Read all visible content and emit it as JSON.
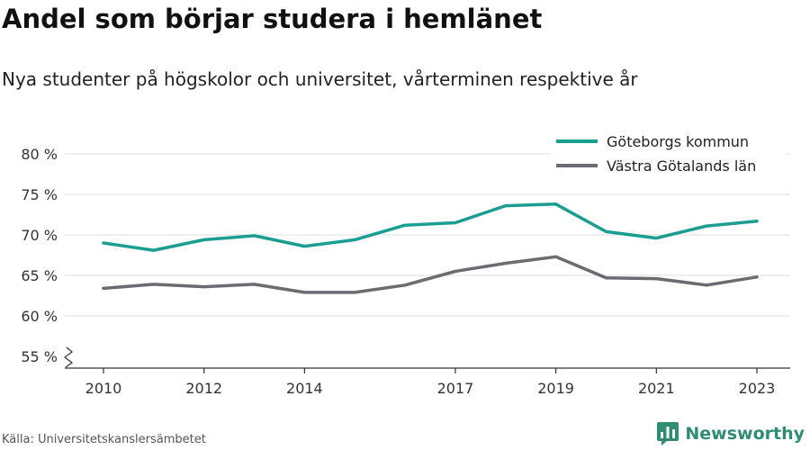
{
  "header": {
    "title": "Andel som börjar studera i hemlänet",
    "subtitle": "Nya studenter på högskolor och universitet, vårterminen respektive år"
  },
  "footer": {
    "source": "Källa: Universitetskanslersämbetet",
    "brand": "Newsworthy",
    "brand_icon": "bar-chart-logo-icon",
    "brand_color": "#2f8d74"
  },
  "chart_data": {
    "type": "line",
    "title": "Andel som börjar studera i hemlänet",
    "subtitle": "Nya studenter på högskolor och universitet, vårterminen respektive år",
    "x": [
      2010,
      2011,
      2012,
      2013,
      2014,
      2015,
      2016,
      2017,
      2018,
      2019,
      2020,
      2021,
      2022,
      2023
    ],
    "x_ticks": [
      2010,
      2012,
      2014,
      2017,
      2019,
      2021,
      2023
    ],
    "y_ticks": [
      55,
      60,
      65,
      70,
      75,
      80
    ],
    "y_tick_suffix": " %",
    "ylim": [
      55,
      80
    ],
    "y_axis_break": true,
    "grid": true,
    "legend_position": "top-right",
    "series": [
      {
        "name": "Göteborgs kommun",
        "color": "#1a9e91",
        "values": [
          69.0,
          68.1,
          69.4,
          69.9,
          68.6,
          69.4,
          71.2,
          71.5,
          73.6,
          73.8,
          70.4,
          69.6,
          71.1,
          71.7
        ]
      },
      {
        "name": "Västra Götalands län",
        "color": "#6b6b72",
        "values": [
          63.4,
          63.9,
          63.6,
          63.9,
          62.9,
          62.9,
          63.8,
          65.5,
          66.5,
          67.3,
          64.7,
          64.6,
          63.8,
          64.8
        ]
      }
    ]
  }
}
